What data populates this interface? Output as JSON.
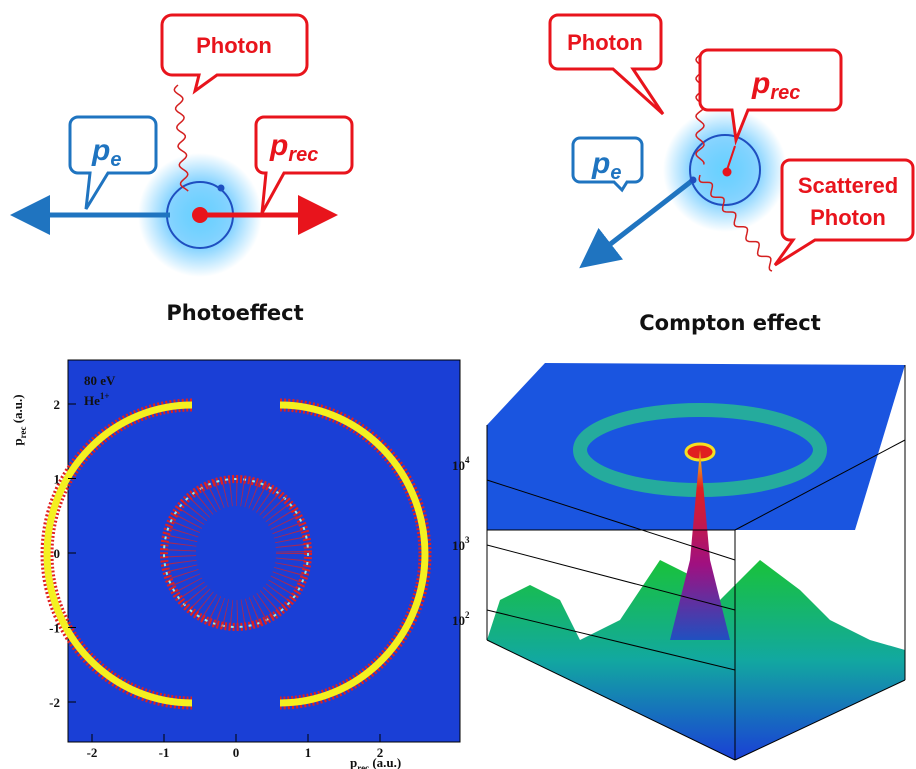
{
  "photoeffect": {
    "photon_label": "Photon",
    "electron_label": {
      "main": "p",
      "sub": "e"
    },
    "recoil_label": {
      "main": "p",
      "sub": "rec"
    },
    "caption": "Photoeffect"
  },
  "compton": {
    "photon_label": "Photon",
    "recoil_label": {
      "main": "p",
      "sub": "rec"
    },
    "electron_label": {
      "main": "p",
      "sub": "e"
    },
    "scattered_label": [
      "Scattered",
      "Photon"
    ],
    "caption": "Compton effect"
  },
  "momentum_plot": {
    "annotation": {
      "energy": "80 eV",
      "ion": {
        "main": "He",
        "sup": "1+"
      }
    },
    "y_label": {
      "main": "p",
      "sub": "rec",
      "unit": "(a.u.)"
    },
    "x_label": {
      "main": "p",
      "sub": "rec",
      "unit": "(a.u.)"
    },
    "xticks": [
      -2,
      -1,
      0,
      1,
      2
    ],
    "yticks": [
      -2,
      -1,
      0,
      1,
      2
    ]
  },
  "surface_plot": {
    "zticks": [
      {
        "base": "10",
        "exp": "4"
      },
      {
        "base": "10",
        "exp": "3"
      },
      {
        "base": "10",
        "exp": "2"
      }
    ]
  }
}
